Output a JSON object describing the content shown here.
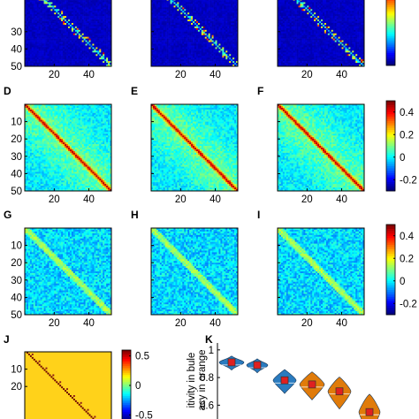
{
  "figure": {
    "panels": [
      {
        "letter": "",
        "kind": "sparse",
        "seed": 11
      },
      {
        "letter": "",
        "kind": "sparse",
        "seed": 12
      },
      {
        "letter": "",
        "kind": "sparse",
        "seed": 13
      },
      {
        "letter": "D",
        "kind": "dense",
        "seed": 21
      },
      {
        "letter": "E",
        "kind": "dense",
        "seed": 22
      },
      {
        "letter": "F",
        "kind": "dense",
        "seed": 23
      },
      {
        "letter": "G",
        "kind": "noisy",
        "seed": 31
      },
      {
        "letter": "H",
        "kind": "noisy",
        "seed": 32
      },
      {
        "letter": "I",
        "kind": "noisy",
        "seed": 33
      },
      {
        "letter": "J",
        "kind": "binary",
        "seed": 41
      }
    ],
    "panel_k_letter": "K"
  },
  "chart_data": [
    {
      "type": "heatmap",
      "title": "",
      "matrix_size": 50,
      "x_ticks": [
        20,
        40
      ],
      "y_ticks": [
        30,
        40,
        50
      ],
      "colorbar_ticks": []
    },
    {
      "type": "heatmap",
      "title": "",
      "matrix_size": 50,
      "x_ticks": [
        20,
        40
      ],
      "y_ticks": [
        10,
        20,
        30,
        40,
        50
      ],
      "colorbar_range": [
        -0.3,
        0.5
      ],
      "colorbar_ticks": [
        0.4,
        0.2,
        0,
        -0.2
      ]
    },
    {
      "type": "heatmap",
      "title": "",
      "matrix_size": 50,
      "x_ticks": [
        20,
        40
      ],
      "y_ticks": [
        10,
        20,
        30,
        40,
        50
      ],
      "colorbar_range": [
        -0.3,
        0.5
      ],
      "colorbar_ticks": [
        0.4,
        0.2,
        0,
        -0.2
      ]
    },
    {
      "type": "heatmap",
      "title": "",
      "matrix_size": 50,
      "y_ticks": [
        10,
        20
      ],
      "colorbar_range": [
        -0.6,
        0.6
      ],
      "colorbar_ticks": [
        0.5,
        0,
        -0.5
      ]
    },
    {
      "type": "violin",
      "title": "",
      "ylabel_lines": [
        "itivity in bule",
        "acy in orange"
      ],
      "y_ticks": [
        1,
        0.8,
        0.6
      ],
      "ylim": [
        0.5,
        1.05
      ],
      "series": [
        {
          "color": "#2a7bbf",
          "medians": [
            0.91,
            0.89,
            0.78
          ]
        },
        {
          "color": "#e07b0a",
          "medians": [
            0.75,
            0.7,
            0.55
          ]
        }
      ]
    }
  ]
}
